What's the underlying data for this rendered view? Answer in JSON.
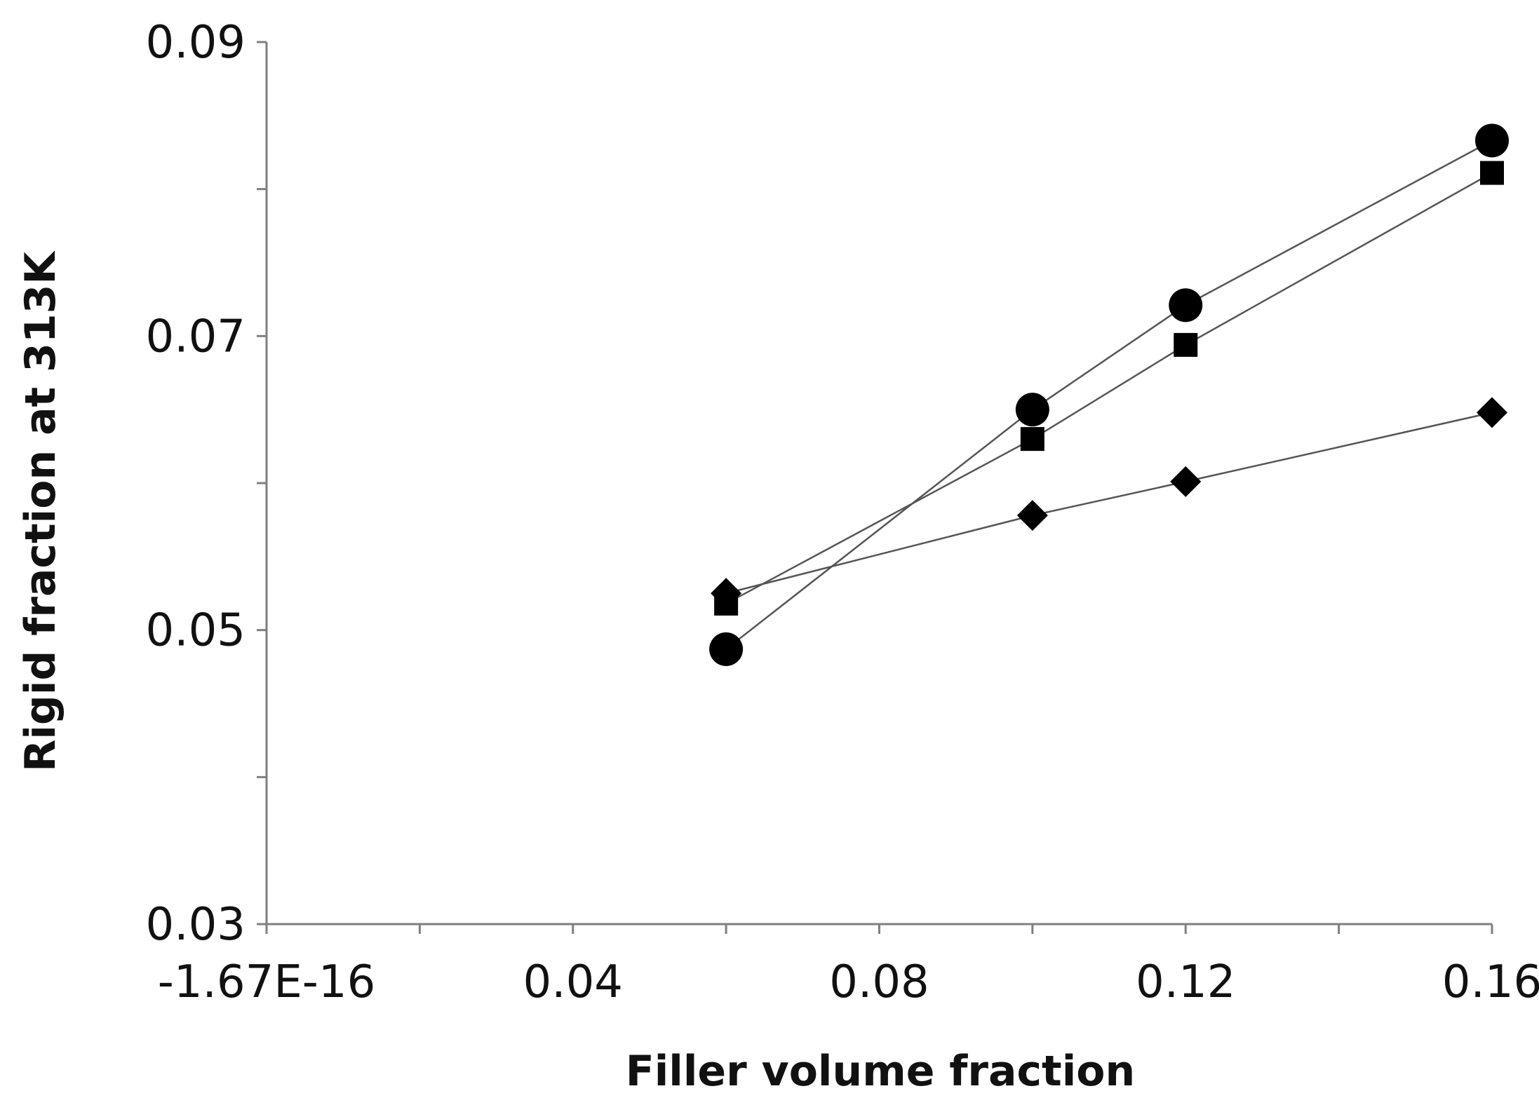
{
  "chart_data": {
    "type": "line",
    "title": "",
    "xlabel": "Filler volume fraction",
    "ylabel": "Rigid fraction at 313K",
    "xlim": [
      0,
      0.16
    ],
    "ylim": [
      0.03,
      0.09
    ],
    "x_ticks": [
      {
        "value": 0,
        "label": "-1.67E-16"
      },
      {
        "value": 0.04,
        "label": "0.04"
      },
      {
        "value": 0.08,
        "label": "0.08"
      },
      {
        "value": 0.12,
        "label": "0.12"
      },
      {
        "value": 0.16,
        "label": "0.16"
      }
    ],
    "x_minor_ticks": [
      0.02,
      0.06,
      0.1,
      0.14
    ],
    "y_ticks": [
      {
        "value": 0.03,
        "label": "0.03"
      },
      {
        "value": 0.05,
        "label": "0.05"
      },
      {
        "value": 0.07,
        "label": "0.07"
      },
      {
        "value": 0.09,
        "label": "0.09"
      }
    ],
    "y_minor_ticks": [
      0.04,
      0.06,
      0.08
    ],
    "grid": false,
    "legend": "none",
    "line_color": "#555555",
    "marker_color": "#000000",
    "series": [
      {
        "name": "circle-series",
        "marker": "circle",
        "x": [
          0.06,
          0.1,
          0.12,
          0.16
        ],
        "y": [
          0.0487,
          0.065,
          0.0721,
          0.0833
        ]
      },
      {
        "name": "square-series",
        "marker": "square",
        "x": [
          0.06,
          0.1,
          0.12,
          0.16
        ],
        "y": [
          0.0518,
          0.063,
          0.0694,
          0.0811
        ]
      },
      {
        "name": "diamond-series",
        "marker": "diamond",
        "x": [
          0.06,
          0.1,
          0.12,
          0.16
        ],
        "y": [
          0.0525,
          0.0578,
          0.0601,
          0.0648
        ]
      }
    ]
  }
}
